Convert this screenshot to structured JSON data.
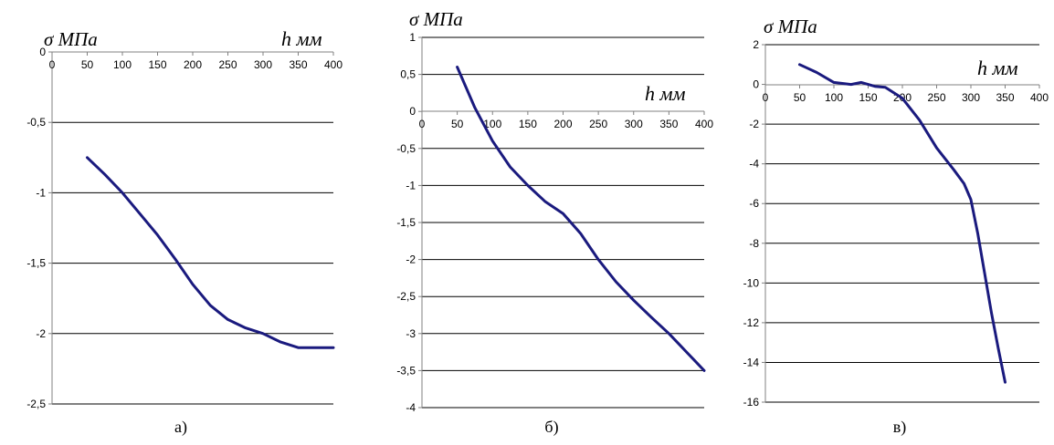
{
  "chart_data": [
    {
      "type": "line",
      "caption": "а)",
      "ylabel": "σ МПа",
      "xlabel": "h мм",
      "xlim": [
        0,
        400
      ],
      "ylim": [
        -2.5,
        0
      ],
      "x_ticks": [
        0,
        50,
        100,
        150,
        200,
        250,
        300,
        350,
        400
      ],
      "y_ticks": [
        0,
        -0.5,
        -1,
        -1.5,
        -2,
        -2.5
      ],
      "x_tick_labels": [
        "0",
        "50",
        "100",
        "150",
        "200",
        "250",
        "300",
        "350",
        "400"
      ],
      "y_tick_labels": [
        "0",
        "-0,5",
        "-1",
        "-1,5",
        "-2",
        "-2,5"
      ],
      "grid": "horizontal",
      "color": "#1a1a7e",
      "points": [
        [
          50,
          -0.75
        ],
        [
          75,
          -0.87
        ],
        [
          100,
          -1.0
        ],
        [
          125,
          -1.15
        ],
        [
          150,
          -1.3
        ],
        [
          175,
          -1.47
        ],
        [
          200,
          -1.65
        ],
        [
          225,
          -1.8
        ],
        [
          250,
          -1.9
        ],
        [
          275,
          -1.96
        ],
        [
          300,
          -2.0
        ],
        [
          325,
          -2.06
        ],
        [
          350,
          -2.1
        ],
        [
          375,
          -2.1
        ],
        [
          400,
          -2.1
        ]
      ]
    },
    {
      "type": "line",
      "caption": "б)",
      "ylabel": "σ МПа",
      "xlabel": "h мм",
      "xlim": [
        0,
        400
      ],
      "ylim": [
        -4,
        1
      ],
      "x_ticks": [
        0,
        50,
        100,
        150,
        200,
        250,
        300,
        350,
        400
      ],
      "y_ticks": [
        1,
        0.5,
        0,
        -0.5,
        -1,
        -1.5,
        -2,
        -2.5,
        -3,
        -3.5,
        -4
      ],
      "x_tick_labels": [
        "0",
        "50",
        "100",
        "150",
        "200",
        "250",
        "300",
        "350",
        "400"
      ],
      "y_tick_labels": [
        "1",
        "0,5",
        "0",
        "-0,5",
        "-1",
        "-1,5",
        "-2",
        "-2,5",
        "-3",
        "-3,5",
        "-4"
      ],
      "grid": "horizontal",
      "color": "#1a1a7e",
      "points": [
        [
          50,
          0.6
        ],
        [
          75,
          0.05
        ],
        [
          100,
          -0.4
        ],
        [
          125,
          -0.75
        ],
        [
          150,
          -1.0
        ],
        [
          175,
          -1.22
        ],
        [
          200,
          -1.38
        ],
        [
          225,
          -1.65
        ],
        [
          250,
          -2.0
        ],
        [
          275,
          -2.3
        ],
        [
          300,
          -2.55
        ],
        [
          325,
          -2.78
        ],
        [
          350,
          -3.0
        ],
        [
          375,
          -3.25
        ],
        [
          400,
          -3.5
        ]
      ]
    },
    {
      "type": "line",
      "caption": "в)",
      "ylabel": "σ МПа",
      "xlabel": "h мм",
      "xlim": [
        0,
        400
      ],
      "ylim": [
        -16,
        2
      ],
      "x_ticks": [
        0,
        50,
        100,
        150,
        200,
        250,
        300,
        350,
        400
      ],
      "y_ticks": [
        2,
        0,
        -2,
        -4,
        -6,
        -8,
        -10,
        -12,
        -14,
        -16
      ],
      "x_tick_labels": [
        "0",
        "50",
        "100",
        "150",
        "200",
        "250",
        "300",
        "350",
        "400"
      ],
      "y_tick_labels": [
        "2",
        "0",
        "-2",
        "-4",
        "-6",
        "-8",
        "-10",
        "-12",
        "-14",
        "-16"
      ],
      "grid": "horizontal",
      "color": "#1a1a7e",
      "points": [
        [
          50,
          1.0
        ],
        [
          75,
          0.6
        ],
        [
          100,
          0.1
        ],
        [
          125,
          0.0
        ],
        [
          140,
          0.1
        ],
        [
          160,
          -0.1
        ],
        [
          175,
          -0.15
        ],
        [
          200,
          -0.7
        ],
        [
          225,
          -1.8
        ],
        [
          250,
          -3.2
        ],
        [
          275,
          -4.3
        ],
        [
          290,
          -5.0
        ],
        [
          300,
          -5.8
        ],
        [
          310,
          -7.5
        ],
        [
          320,
          -9.5
        ],
        [
          330,
          -11.5
        ],
        [
          340,
          -13.3
        ],
        [
          350,
          -15.0
        ]
      ]
    }
  ]
}
